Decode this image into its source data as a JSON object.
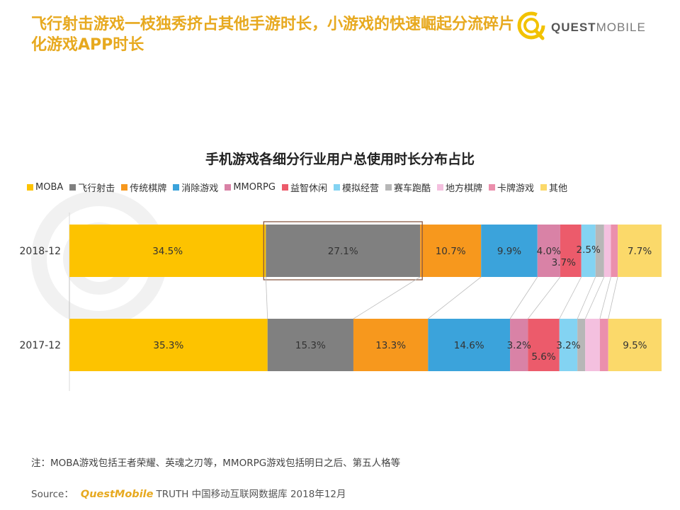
{
  "headline": "飞行射击游戏一枝独秀挤占其他手游时长，小游戏的快速崛起分流碎片化游戏APP时长",
  "logo": {
    "bold": "QUEST",
    "light": "MOBILE"
  },
  "note": "注：MOBA游戏包括王者荣耀、英魂之刃等，MMORPG游戏包括明日之后、第五人格等",
  "source": {
    "label": "Source：",
    "brand": "QuestMobile",
    "rest": "TRUTH 中国移动互联网数据库 2018年12月"
  },
  "chart_data": {
    "type": "bar",
    "orientation": "horizontal",
    "stacked": "100%",
    "title": "手机游戏各细分行业用户总使用时长分布占比",
    "legend_position": "top",
    "categories": [
      "2018-12",
      "2017-12"
    ],
    "series": [
      {
        "name": "MOBA",
        "color": "#fdc300",
        "values": [
          34.5,
          35.3
        ],
        "labels": [
          "34.5%",
          "35.3%"
        ]
      },
      {
        "name": "飞行射击",
        "color": "#808080",
        "values": [
          27.1,
          15.3
        ],
        "labels": [
          "27.1%",
          "15.3%"
        ]
      },
      {
        "name": "传统棋牌",
        "color": "#f7981d",
        "values": [
          10.7,
          13.3
        ],
        "labels": [
          "10.7%",
          "13.3%"
        ]
      },
      {
        "name": "消除游戏",
        "color": "#3ba3db",
        "values": [
          9.9,
          14.6
        ],
        "labels": [
          "9.9%",
          "14.6%"
        ]
      },
      {
        "name": "MMORPG",
        "color": "#d982a6",
        "values": [
          4.0,
          3.2
        ],
        "labels": [
          "4.0%",
          "3.2%"
        ]
      },
      {
        "name": "益智休闲",
        "color": "#ec5b6b",
        "values": [
          3.7,
          5.6
        ],
        "labels": [
          "3.7%",
          "5.6%"
        ]
      },
      {
        "name": "模拟经营",
        "color": "#83d3f2",
        "values": [
          2.5,
          3.2
        ],
        "labels": [
          "2.5%",
          "3.2%"
        ]
      },
      {
        "name": "赛车跑酷",
        "color": "#b7b7b7",
        "values": [
          1.5,
          1.4
        ],
        "labels": [
          "",
          ""
        ]
      },
      {
        "name": "地方棋牌",
        "color": "#f4c0df",
        "values": [
          1.2,
          2.6
        ],
        "labels": [
          "",
          ""
        ]
      },
      {
        "name": "卡牌游戏",
        "color": "#eb8fac",
        "values": [
          1.2,
          1.5
        ],
        "labels": [
          "",
          ""
        ]
      },
      {
        "name": "其他",
        "color": "#fbd96a",
        "values": [
          7.7,
          9.5
        ],
        "labels": [
          "7.7%",
          "9.5%"
        ]
      }
    ],
    "highlight": {
      "category": "2018-12",
      "series": "飞行射击"
    }
  }
}
